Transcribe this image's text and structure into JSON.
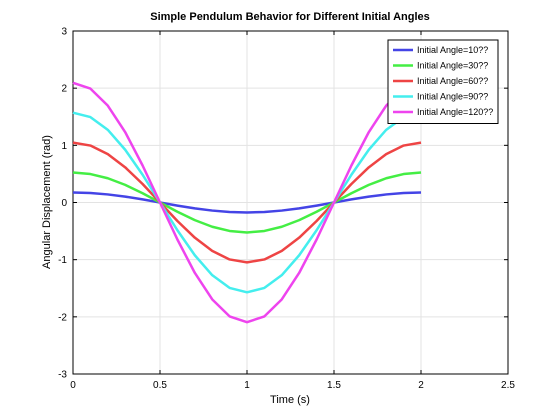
{
  "chart_data": {
    "type": "line",
    "title": "Simple Pendulum Behavior for Different Initial Angles",
    "xlabel": "Time (s)",
    "ylabel": "Angular Displacement (rad)",
    "xlim": [
      0,
      2.5
    ],
    "ylim": [
      -3,
      3
    ],
    "xticks": [
      0,
      0.5,
      1,
      1.5,
      2,
      2.5
    ],
    "xtick_labels": [
      "0",
      "0.5",
      "1",
      "1.5",
      "2",
      "2.5"
    ],
    "yticks": [
      -3,
      -2,
      -1,
      0,
      1,
      2,
      3
    ],
    "ytick_labels": [
      "-3",
      "-2",
      "-1",
      "0",
      "1",
      "2",
      "3"
    ],
    "grid": true,
    "legend_position": "top-right",
    "x": [
      0,
      0.1,
      0.2,
      0.3,
      0.4,
      0.5,
      0.6,
      0.7,
      0.8,
      0.9,
      1.0,
      1.1,
      1.2,
      1.3,
      1.4,
      1.5,
      1.6,
      1.7,
      1.8,
      1.9,
      2.0
    ],
    "series": [
      {
        "name": "Initial Angle=10??",
        "color": "#4444e6",
        "values": [
          0.175,
          0.166,
          0.141,
          0.103,
          0.054,
          0.0,
          -0.054,
          -0.103,
          -0.141,
          -0.166,
          -0.175,
          -0.166,
          -0.141,
          -0.103,
          -0.054,
          0.0,
          0.054,
          0.103,
          0.141,
          0.166,
          0.175
        ]
      },
      {
        "name": "Initial Angle=30??",
        "color": "#44ee44",
        "values": [
          0.524,
          0.498,
          0.424,
          0.308,
          0.162,
          0.0,
          -0.162,
          -0.308,
          -0.424,
          -0.498,
          -0.524,
          -0.498,
          -0.424,
          -0.308,
          -0.162,
          0.0,
          0.162,
          0.308,
          0.424,
          0.498,
          0.524
        ]
      },
      {
        "name": "Initial Angle=60??",
        "color": "#ee4444",
        "values": [
          1.047,
          0.996,
          0.847,
          0.615,
          0.324,
          0.0,
          -0.324,
          -0.615,
          -0.847,
          -0.996,
          -1.047,
          -0.996,
          -0.847,
          -0.615,
          -0.324,
          0.0,
          0.324,
          0.615,
          0.847,
          0.996,
          1.047
        ]
      },
      {
        "name": "Initial Angle=90??",
        "color": "#44eeee",
        "values": [
          1.571,
          1.494,
          1.271,
          0.923,
          0.485,
          0.0,
          -0.485,
          -0.923,
          -1.271,
          -1.494,
          -1.571,
          -1.494,
          -1.271,
          -0.923,
          -0.485,
          0.0,
          0.485,
          0.923,
          1.271,
          1.494,
          1.571
        ]
      },
      {
        "name": "Initial Angle=120??",
        "color": "#ee44ee",
        "values": [
          2.094,
          1.992,
          1.694,
          1.231,
          0.647,
          0.0,
          -0.647,
          -1.231,
          -1.694,
          -1.992,
          -2.094,
          -1.992,
          -1.694,
          -1.231,
          -0.647,
          0.0,
          0.647,
          1.231,
          1.694,
          1.992,
          2.094
        ]
      }
    ]
  }
}
